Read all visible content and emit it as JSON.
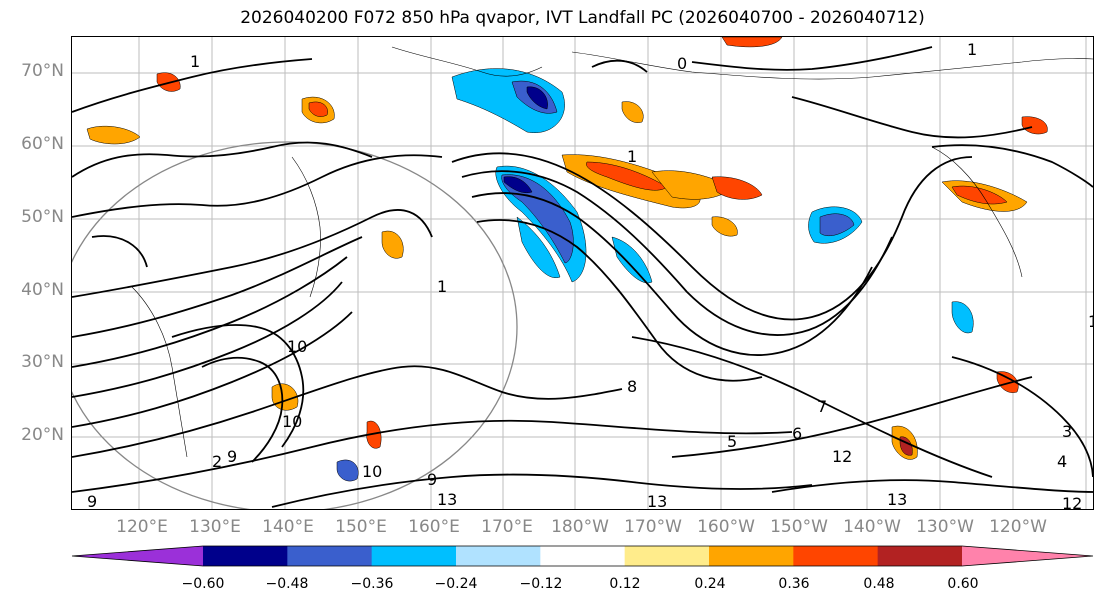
{
  "title": "2026040200 F072 850 hPa qvapor, IVT Landfall PC (2026040700 - 2026040712)",
  "lat_labels": [
    "70°N",
    "60°N",
    "50°N",
    "40°N",
    "30°N",
    "20°N"
  ],
  "lon_labels": [
    "120°E",
    "130°E",
    "140°E",
    "150°E",
    "160°E",
    "170°E",
    "180°W",
    "170°W",
    "160°W",
    "150°W",
    "140°W",
    "130°W",
    "120°W"
  ],
  "colorbar": {
    "colors": [
      "#9b30d9",
      "#00008b",
      "#3a5fcd",
      "#00bfff",
      "#b0e2ff",
      "#ffffff",
      "#ffec8b",
      "#ffa500",
      "#ff4500",
      "#b22222",
      "#ff82ab"
    ],
    "tick_labels": [
      "−0.60",
      "−0.48",
      "−0.36",
      "−0.24",
      "−0.12",
      "0.12",
      "0.24",
      "0.36",
      "0.48",
      "0.60"
    ],
    "extend": "both"
  },
  "contour_labels": [
    "0",
    "1",
    "1",
    "1",
    "1",
    "1",
    "10",
    "10",
    "10",
    "9",
    "9",
    "9",
    "13",
    "13",
    "13",
    "12",
    "12",
    "8",
    "7",
    "6",
    "5",
    "4",
    "3",
    "2"
  ]
}
